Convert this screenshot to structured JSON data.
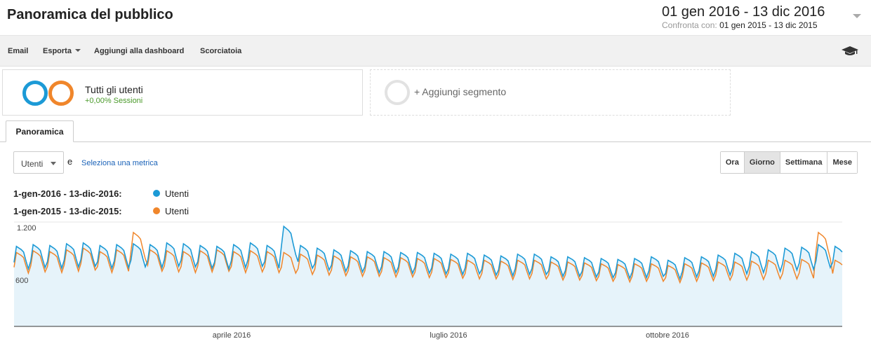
{
  "header": {
    "title": "Panoramica del pubblico",
    "date_range": "01 gen 2016 - 13 dic 2016",
    "compare_label": "Confronta con:",
    "compare_range": "01 gen 2015 - 13 dic 2015"
  },
  "toolbar": {
    "email": "Email",
    "export": "Esporta",
    "add_dashboard": "Aggiungi alla dashboard",
    "shortcut": "Scorciatoia",
    "icon": "graduation-cap-icon"
  },
  "segments": {
    "all_users": {
      "title": "Tutti gli utenti",
      "subtitle": "+0,00% Sessioni"
    },
    "add": {
      "label": "+ Aggiungi segmento"
    }
  },
  "tabs": {
    "overview": "Panoramica"
  },
  "controls": {
    "metric": "Utenti",
    "and": "e",
    "select_metric": "Seleziona una metrica",
    "granularity": [
      "Ora",
      "Giorno",
      "Settimana",
      "Mese"
    ],
    "granularity_selected": "Giorno"
  },
  "legend": [
    {
      "range": "1-gen-2016 - 13-dic-2016:",
      "name": "Utenti",
      "color": "#1c9ad6"
    },
    {
      "range": "1-gen-2015 - 13-dic-2015:",
      "name": "Utenti",
      "color": "#f0862b"
    }
  ],
  "colors": {
    "series_2016": "#1c9ad6",
    "series_2015": "#f0862b",
    "area_fill": "#e6f3fa"
  },
  "chart_data": {
    "type": "line",
    "y_ticks": [
      "1.200",
      "600"
    ],
    "ylim": [
      0,
      1200
    ],
    "x_tick_labels": [
      "aprile 2016",
      "luglio 2016",
      "ottobre 2016"
    ],
    "x_range": [
      "2016-01-01",
      "2016-12-13"
    ],
    "series": [
      {
        "range": "2016-01-01 - 2016-12-13",
        "color": "#1c9ad6",
        "area": true,
        "weekly_peak_values": [
          920,
          940,
          930,
          950,
          960,
          930,
          940,
          950,
          940,
          960,
          950,
          930,
          920,
          940,
          960,
          930,
          1150,
          930,
          900,
          880,
          870,
          860,
          860,
          850,
          850,
          840,
          830,
          840,
          820,
          810,
          830,
          830,
          800,
          800,
          790,
          780,
          770,
          780,
          800,
          760,
          790,
          800,
          820,
          840,
          860,
          880,
          900,
          910,
          940,
          920,
          950,
          1000,
          980
        ]
      },
      {
        "range": "2015-01-01 - 2015-12-13",
        "color": "#f0862b",
        "area": false,
        "weekly_peak_values": [
          850,
          870,
          860,
          880,
          900,
          860,
          880,
          1080,
          880,
          870,
          860,
          870,
          880,
          860,
          870,
          860,
          850,
          830,
          820,
          810,
          800,
          800,
          790,
          790,
          780,
          780,
          770,
          760,
          760,
          750,
          760,
          760,
          740,
          740,
          730,
          720,
          710,
          720,
          720,
          700,
          720,
          730,
          740,
          740,
          750,
          760,
          760,
          770,
          1080,
          760,
          760,
          760,
          760
        ]
      }
    ]
  }
}
